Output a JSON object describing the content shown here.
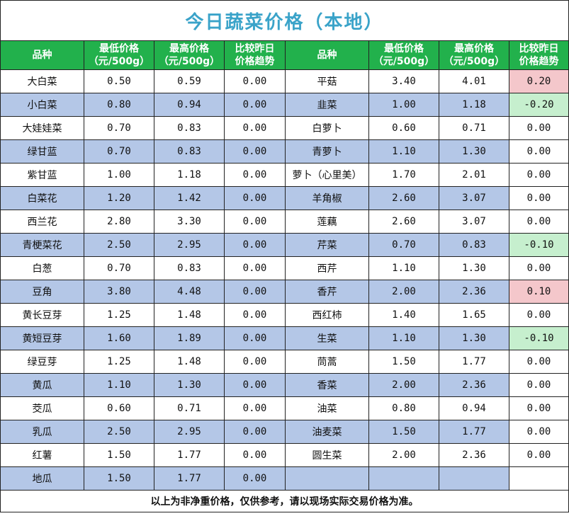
{
  "title": "今日蔬菜价格（本地）",
  "headers": {
    "name": "品种",
    "low_l1": "最低价格",
    "low_l2": "（元/500g）",
    "high_l1": "最高价格",
    "high_l2": "（元/500g）",
    "trend_l1": "比较昨日",
    "trend_l2": "价格趋势"
  },
  "colors": {
    "header_bg": "#22b14c",
    "title_text": "#3aa3c9",
    "row_shade": "#b4c7e7",
    "price_up": "#f4c7cb",
    "price_down": "#c6efce"
  },
  "rows": [
    {
      "l": {
        "name": "大白菜",
        "low": "0.50",
        "high": "0.59",
        "trend": "0.00"
      },
      "r": {
        "name": "平菇",
        "low": "3.40",
        "high": "4.01",
        "trend": "0.20"
      }
    },
    {
      "l": {
        "name": "小白菜",
        "low": "0.80",
        "high": "0.94",
        "trend": "0.00"
      },
      "r": {
        "name": "韭菜",
        "low": "1.00",
        "high": "1.18",
        "trend": "-0.20"
      }
    },
    {
      "l": {
        "name": "大娃娃菜",
        "low": "0.70",
        "high": "0.83",
        "trend": "0.00"
      },
      "r": {
        "name": "白萝卜",
        "low": "0.60",
        "high": "0.71",
        "trend": "0.00"
      }
    },
    {
      "l": {
        "name": "绿甘蓝",
        "low": "0.70",
        "high": "0.83",
        "trend": "0.00"
      },
      "r": {
        "name": "青萝卜",
        "low": "1.10",
        "high": "1.30",
        "trend": "0.00"
      }
    },
    {
      "l": {
        "name": "紫甘蓝",
        "low": "1.00",
        "high": "1.18",
        "trend": "0.00"
      },
      "r": {
        "name": "萝卜（心里美）",
        "low": "1.70",
        "high": "2.01",
        "trend": "0.00"
      }
    },
    {
      "l": {
        "name": "白菜花",
        "low": "1.20",
        "high": "1.42",
        "trend": "0.00"
      },
      "r": {
        "name": "羊角椒",
        "low": "2.60",
        "high": "3.07",
        "trend": "0.00"
      }
    },
    {
      "l": {
        "name": "西兰花",
        "low": "2.80",
        "high": "3.30",
        "trend": "0.00"
      },
      "r": {
        "name": "莲藕",
        "low": "2.60",
        "high": "3.07",
        "trend": "0.00"
      }
    },
    {
      "l": {
        "name": "青梗菜花",
        "low": "2.50",
        "high": "2.95",
        "trend": "0.00"
      },
      "r": {
        "name": "芹菜",
        "low": "0.70",
        "high": "0.83",
        "trend": "-0.10"
      }
    },
    {
      "l": {
        "name": "白葱",
        "low": "0.70",
        "high": "0.83",
        "trend": "0.00"
      },
      "r": {
        "name": "西芹",
        "low": "1.10",
        "high": "1.30",
        "trend": "0.00"
      }
    },
    {
      "l": {
        "name": "豆角",
        "low": "3.80",
        "high": "4.48",
        "trend": "0.00"
      },
      "r": {
        "name": "香芹",
        "low": "2.00",
        "high": "2.36",
        "trend": "0.10"
      }
    },
    {
      "l": {
        "name": "黄长豆芽",
        "low": "1.25",
        "high": "1.48",
        "trend": "0.00"
      },
      "r": {
        "name": "西红柿",
        "low": "1.40",
        "high": "1.65",
        "trend": "0.00"
      }
    },
    {
      "l": {
        "name": "黄短豆芽",
        "low": "1.60",
        "high": "1.89",
        "trend": "0.00"
      },
      "r": {
        "name": "生菜",
        "low": "1.10",
        "high": "1.30",
        "trend": "-0.10"
      }
    },
    {
      "l": {
        "name": "绿豆芽",
        "low": "1.25",
        "high": "1.48",
        "trend": "0.00"
      },
      "r": {
        "name": "茼蒿",
        "low": "1.50",
        "high": "1.77",
        "trend": "0.00"
      }
    },
    {
      "l": {
        "name": "黄瓜",
        "low": "1.10",
        "high": "1.30",
        "trend": "0.00"
      },
      "r": {
        "name": "香菜",
        "low": "2.00",
        "high": "2.36",
        "trend": "0.00"
      }
    },
    {
      "l": {
        "name": "茭瓜",
        "low": "0.60",
        "high": "0.71",
        "trend": "0.00"
      },
      "r": {
        "name": "油菜",
        "low": "0.80",
        "high": "0.94",
        "trend": "0.00"
      }
    },
    {
      "l": {
        "name": "乳瓜",
        "low": "2.50",
        "high": "2.95",
        "trend": "0.00"
      },
      "r": {
        "name": "油麦菜",
        "low": "1.50",
        "high": "1.77",
        "trend": "0.00"
      }
    },
    {
      "l": {
        "name": "红薯",
        "low": "1.50",
        "high": "1.77",
        "trend": "0.00"
      },
      "r": {
        "name": "圆生菜",
        "low": "2.00",
        "high": "2.36",
        "trend": "0.00"
      }
    },
    {
      "l": {
        "name": "地瓜",
        "low": "1.50",
        "high": "1.77",
        "trend": "0.00"
      },
      "r": {
        "name": "",
        "low": "",
        "high": "",
        "trend": ""
      }
    }
  ],
  "footer": "以上为非净重价格，仅供参考，请以现场实际交易价格为准。"
}
